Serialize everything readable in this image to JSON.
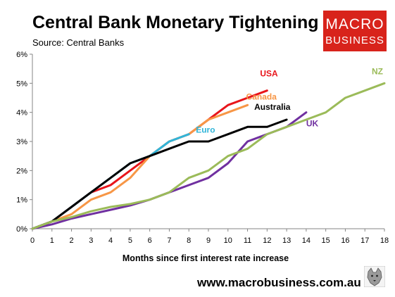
{
  "header": {
    "title": "Central Bank Monetary Tightening",
    "subtitle": "Source: Central Banks"
  },
  "logo": {
    "line1": "MACRO",
    "line2": "BUSINESS",
    "color": "#d8231b"
  },
  "footer": {
    "url": "www.macrobusiness.com.au",
    "icon": "wolf-icon"
  },
  "chart_data": {
    "type": "line",
    "title": "Central Bank Monetary Tightening",
    "xlabel": "Months since first interest rate increase",
    "ylabel": "",
    "xlim": [
      0,
      18
    ],
    "ylim": [
      0,
      6
    ],
    "x_ticks": [
      "0",
      "1",
      "2",
      "3",
      "4",
      "5",
      "6",
      "7",
      "8",
      "9",
      "10",
      "11",
      "12",
      "13",
      "14",
      "15",
      "16",
      "17",
      "18"
    ],
    "y_ticks": [
      "0%",
      "1%",
      "2%",
      "3%",
      "4%",
      "5%",
      "6%"
    ],
    "grid": false,
    "series": [
      {
        "name": "USA",
        "color": "#e8151b",
        "x": [
          0,
          1,
          2,
          3,
          4,
          5,
          6,
          7,
          8,
          9,
          10,
          11,
          12
        ],
        "y": [
          0,
          0.25,
          0.75,
          1.25,
          1.5,
          2.0,
          2.5,
          3.0,
          3.25,
          3.75,
          4.25,
          4.5,
          4.75
        ]
      },
      {
        "name": "Canada",
        "color": "#f79646",
        "x": [
          0,
          1,
          2,
          3,
          4,
          5,
          6,
          7,
          8,
          9,
          10,
          11
        ],
        "y": [
          0,
          0.25,
          0.5,
          1.0,
          1.25,
          1.75,
          2.5,
          3.0,
          3.25,
          3.75,
          4.0,
          4.25
        ]
      },
      {
        "name": "Euro",
        "color": "#31b5d9",
        "x": [
          0,
          1,
          2,
          3,
          4,
          5,
          6,
          7,
          8
        ],
        "y": [
          0,
          0.25,
          0.75,
          1.25,
          1.75,
          2.25,
          2.5,
          3.0,
          3.25
        ]
      },
      {
        "name": "Australia",
        "color": "#000000",
        "x": [
          0,
          1,
          2,
          3,
          4,
          5,
          6,
          7,
          8,
          9,
          10,
          11,
          12,
          13
        ],
        "y": [
          0,
          0.25,
          0.75,
          1.25,
          1.75,
          2.25,
          2.5,
          2.75,
          3.0,
          3.0,
          3.25,
          3.5,
          3.5,
          3.75
        ]
      },
      {
        "name": "UK",
        "color": "#7030a0",
        "x": [
          0,
          1,
          2,
          3,
          4,
          5,
          6,
          7,
          8,
          9,
          10,
          11,
          12,
          13,
          14
        ],
        "y": [
          0,
          0.15,
          0.35,
          0.5,
          0.65,
          0.8,
          1.0,
          1.25,
          1.5,
          1.75,
          2.25,
          3.0,
          3.25,
          3.5,
          4.0
        ]
      },
      {
        "name": "NZ",
        "color": "#9bbb59",
        "x": [
          0,
          1,
          2,
          3,
          4,
          5,
          6,
          7,
          8,
          9,
          10,
          11,
          12,
          13,
          14,
          15,
          16,
          17,
          18
        ],
        "y": [
          0,
          0.25,
          0.4,
          0.6,
          0.75,
          0.85,
          1.0,
          1.25,
          1.75,
          2.0,
          2.5,
          2.75,
          3.25,
          3.5,
          3.75,
          4.0,
          4.5,
          4.75,
          5.0
        ]
      }
    ]
  }
}
